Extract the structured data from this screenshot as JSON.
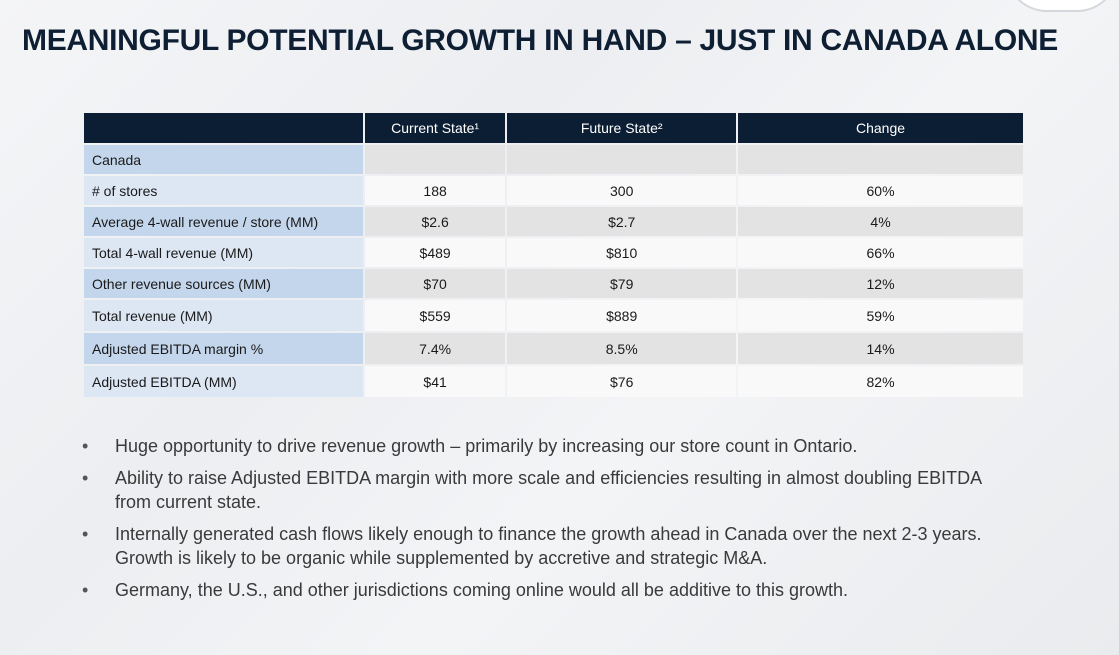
{
  "title": "MEANINGFUL POTENTIAL GROWTH IN HAND – JUST IN CANADA ALONE",
  "table": {
    "headers": [
      "",
      "Current State¹",
      "Future State²",
      "Change"
    ],
    "rows": [
      {
        "label": "Canada",
        "current": "",
        "future": "",
        "change": ""
      },
      {
        "label": "# of stores",
        "current": "188",
        "future": "300",
        "change": "60%"
      },
      {
        "label": "Average 4-wall revenue / store (MM)",
        "current": "$2.6",
        "future": "$2.7",
        "change": "4%"
      },
      {
        "label": "Total 4-wall revenue (MM)",
        "current": "$489",
        "future": "$810",
        "change": "66%"
      },
      {
        "label": "Other revenue sources (MM)",
        "current": "$70",
        "future": "$79",
        "change": "12%"
      },
      {
        "label": "Total revenue (MM)",
        "current": "$559",
        "future": "$889",
        "change": "59%"
      },
      {
        "label": "Adjusted EBITDA margin %",
        "current": "7.4%",
        "future": "8.5%",
        "change": "14%"
      },
      {
        "label": "Adjusted EBITDA (MM)",
        "current": "$41",
        "future": "$76",
        "change": "82%"
      }
    ]
  },
  "bullet_symbol": "•",
  "bullets": [
    "Huge opportunity to drive revenue growth – primarily by increasing our store count in Ontario.",
    "Ability to raise Adjusted EBITDA margin with more scale and efficiencies resulting in almost doubling EBITDA from current state.",
    "Internally generated cash flows likely enough to finance the growth ahead in Canada over the next 2-3 years.  Growth is likely to be organic while supplemented by accretive and strategic M&A.",
    "Germany, the U.S., and other jurisdictions coming online would all be additive to this growth."
  ]
}
